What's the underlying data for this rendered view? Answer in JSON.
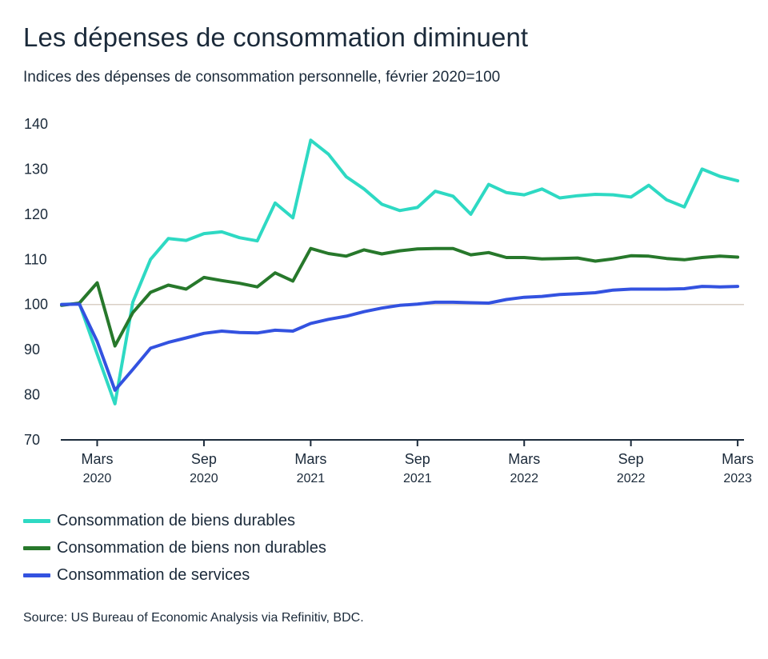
{
  "title": "Les dépenses de consommation diminuent",
  "subtitle": "Indices des dépenses de consommation personnelle, février 2020=100",
  "source": "Source: US Bureau of Economic Analysis via Refinitiv, BDC.",
  "colors": {
    "durables": "#2ed9c3",
    "non_durables": "#27782b",
    "services": "#3352e0",
    "axis": "#1b2a3a",
    "baseline": "#d9cfc6"
  },
  "chart_data": {
    "type": "line",
    "title": "Les dépenses de consommation diminuent",
    "subtitle": "Indices des dépenses de consommation personnelle, février 2020=100",
    "x": [
      "2020-01",
      "2020-02",
      "2020-03",
      "2020-04",
      "2020-05",
      "2020-06",
      "2020-07",
      "2020-08",
      "2020-09",
      "2020-10",
      "2020-11",
      "2020-12",
      "2021-01",
      "2021-02",
      "2021-03",
      "2021-04",
      "2021-05",
      "2021-06",
      "2021-07",
      "2021-08",
      "2021-09",
      "2021-10",
      "2021-11",
      "2021-12",
      "2022-01",
      "2022-02",
      "2022-03",
      "2022-04",
      "2022-05",
      "2022-06",
      "2022-07",
      "2022-08",
      "2022-09",
      "2022-10",
      "2022-11",
      "2022-12",
      "2023-01",
      "2023-02",
      "2023-03"
    ],
    "x_ticks": [
      {
        "month": "2020-03",
        "label": "Mars",
        "year": "2020"
      },
      {
        "month": "2020-09",
        "label": "Sep",
        "year": "2020"
      },
      {
        "month": "2021-03",
        "label": "Mars",
        "year": "2021"
      },
      {
        "month": "2021-09",
        "label": "Sep",
        "year": "2021"
      },
      {
        "month": "2022-03",
        "label": "Mars",
        "year": "2022"
      },
      {
        "month": "2022-09",
        "label": "Sep",
        "year": "2022"
      },
      {
        "month": "2023-03",
        "label": "Mars",
        "year": "2023"
      }
    ],
    "y_ticks": [
      70,
      80,
      90,
      100,
      110,
      120,
      130,
      140
    ],
    "ylim": [
      70,
      140
    ],
    "baseline": 100,
    "grid": false,
    "legend_position": "bottom-left",
    "series": [
      {
        "name": "Consommation de biens durables",
        "color_key": "durables",
        "values": [
          100,
          100.2,
          89,
          78,
          100.5,
          110,
          114.6,
          114.2,
          115.7,
          116.1,
          114.8,
          114.1,
          122.5,
          119.2,
          136.4,
          133.3,
          128.3,
          125.6,
          122.2,
          120.8,
          121.5,
          125.1,
          124.0,
          120.0,
          126.6,
          124.8,
          124.3,
          125.6,
          123.6,
          124.1,
          124.4,
          124.3,
          123.8,
          126.4,
          123.2,
          121.6,
          130.0,
          128.4,
          127.4
        ]
      },
      {
        "name": "Consommation de biens non durables",
        "color_key": "non_durables",
        "values": [
          99.8,
          100.3,
          104.8,
          90.8,
          98.2,
          102.7,
          104.3,
          103.4,
          106.0,
          105.3,
          104.7,
          103.9,
          107.0,
          105.2,
          112.4,
          111.3,
          110.7,
          112.1,
          111.2,
          111.9,
          112.3,
          112.4,
          112.4,
          111.0,
          111.5,
          110.4,
          110.4,
          110.1,
          110.2,
          110.3,
          109.6,
          110.1,
          110.8,
          110.7,
          110.2,
          109.9,
          110.4,
          110.7,
          110.5
        ]
      },
      {
        "name": "Consommation de services",
        "color_key": "services",
        "values": [
          100,
          100.1,
          91.8,
          81.0,
          85.6,
          90.3,
          91.6,
          92.6,
          93.6,
          94.1,
          93.8,
          93.7,
          94.3,
          94.1,
          95.8,
          96.7,
          97.4,
          98.4,
          99.2,
          99.8,
          100.1,
          100.5,
          100.5,
          100.4,
          100.3,
          101.1,
          101.6,
          101.8,
          102.2,
          102.4,
          102.6,
          103.2,
          103.4,
          103.4,
          103.4,
          103.5,
          104.0,
          103.9,
          104.0
        ]
      }
    ]
  }
}
